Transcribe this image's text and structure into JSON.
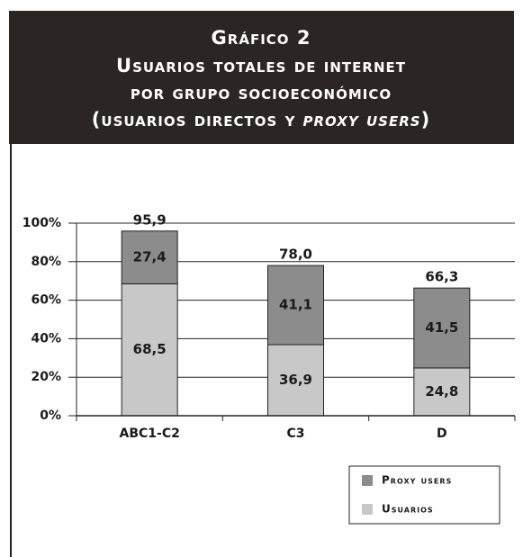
{
  "chart_data": {
    "type": "stacked_bar",
    "title": {
      "lines": [
        "Gráfico 2",
        "Usuarios totales de internet",
        "por grupo socioeconómico"
      ],
      "last_line": [
        "(usuarios directos y",
        "proxy users",
        ")"
      ]
    },
    "categories": [
      "ABC1-C2",
      "C3",
      "D"
    ],
    "series": [
      {
        "name": "Usuarios",
        "color": "#c8c8c8",
        "values": [
          68.5,
          36.9,
          24.8
        ],
        "value_labels": [
          "68,5",
          "36,9",
          "24,8"
        ]
      },
      {
        "name": "Proxy users",
        "color": "#8c8c8c",
        "values": [
          27.4,
          41.1,
          41.5
        ],
        "value_labels": [
          "27,4",
          "41,1",
          "41,5"
        ]
      }
    ],
    "totals": [
      95.9,
      78.0,
      66.3
    ],
    "total_labels": [
      "95,9",
      "78,0",
      "66,3"
    ],
    "ylim": [
      0,
      100
    ],
    "yticks": [
      {
        "value": 0,
        "label": "0%"
      },
      {
        "value": 20,
        "label": "20%"
      },
      {
        "value": 40,
        "label": "40%"
      },
      {
        "value": 60,
        "label": "60%"
      },
      {
        "value": 80,
        "label": "80%"
      },
      {
        "value": 100,
        "label": "100%"
      }
    ],
    "grid": true,
    "legend": "bottom-right"
  }
}
